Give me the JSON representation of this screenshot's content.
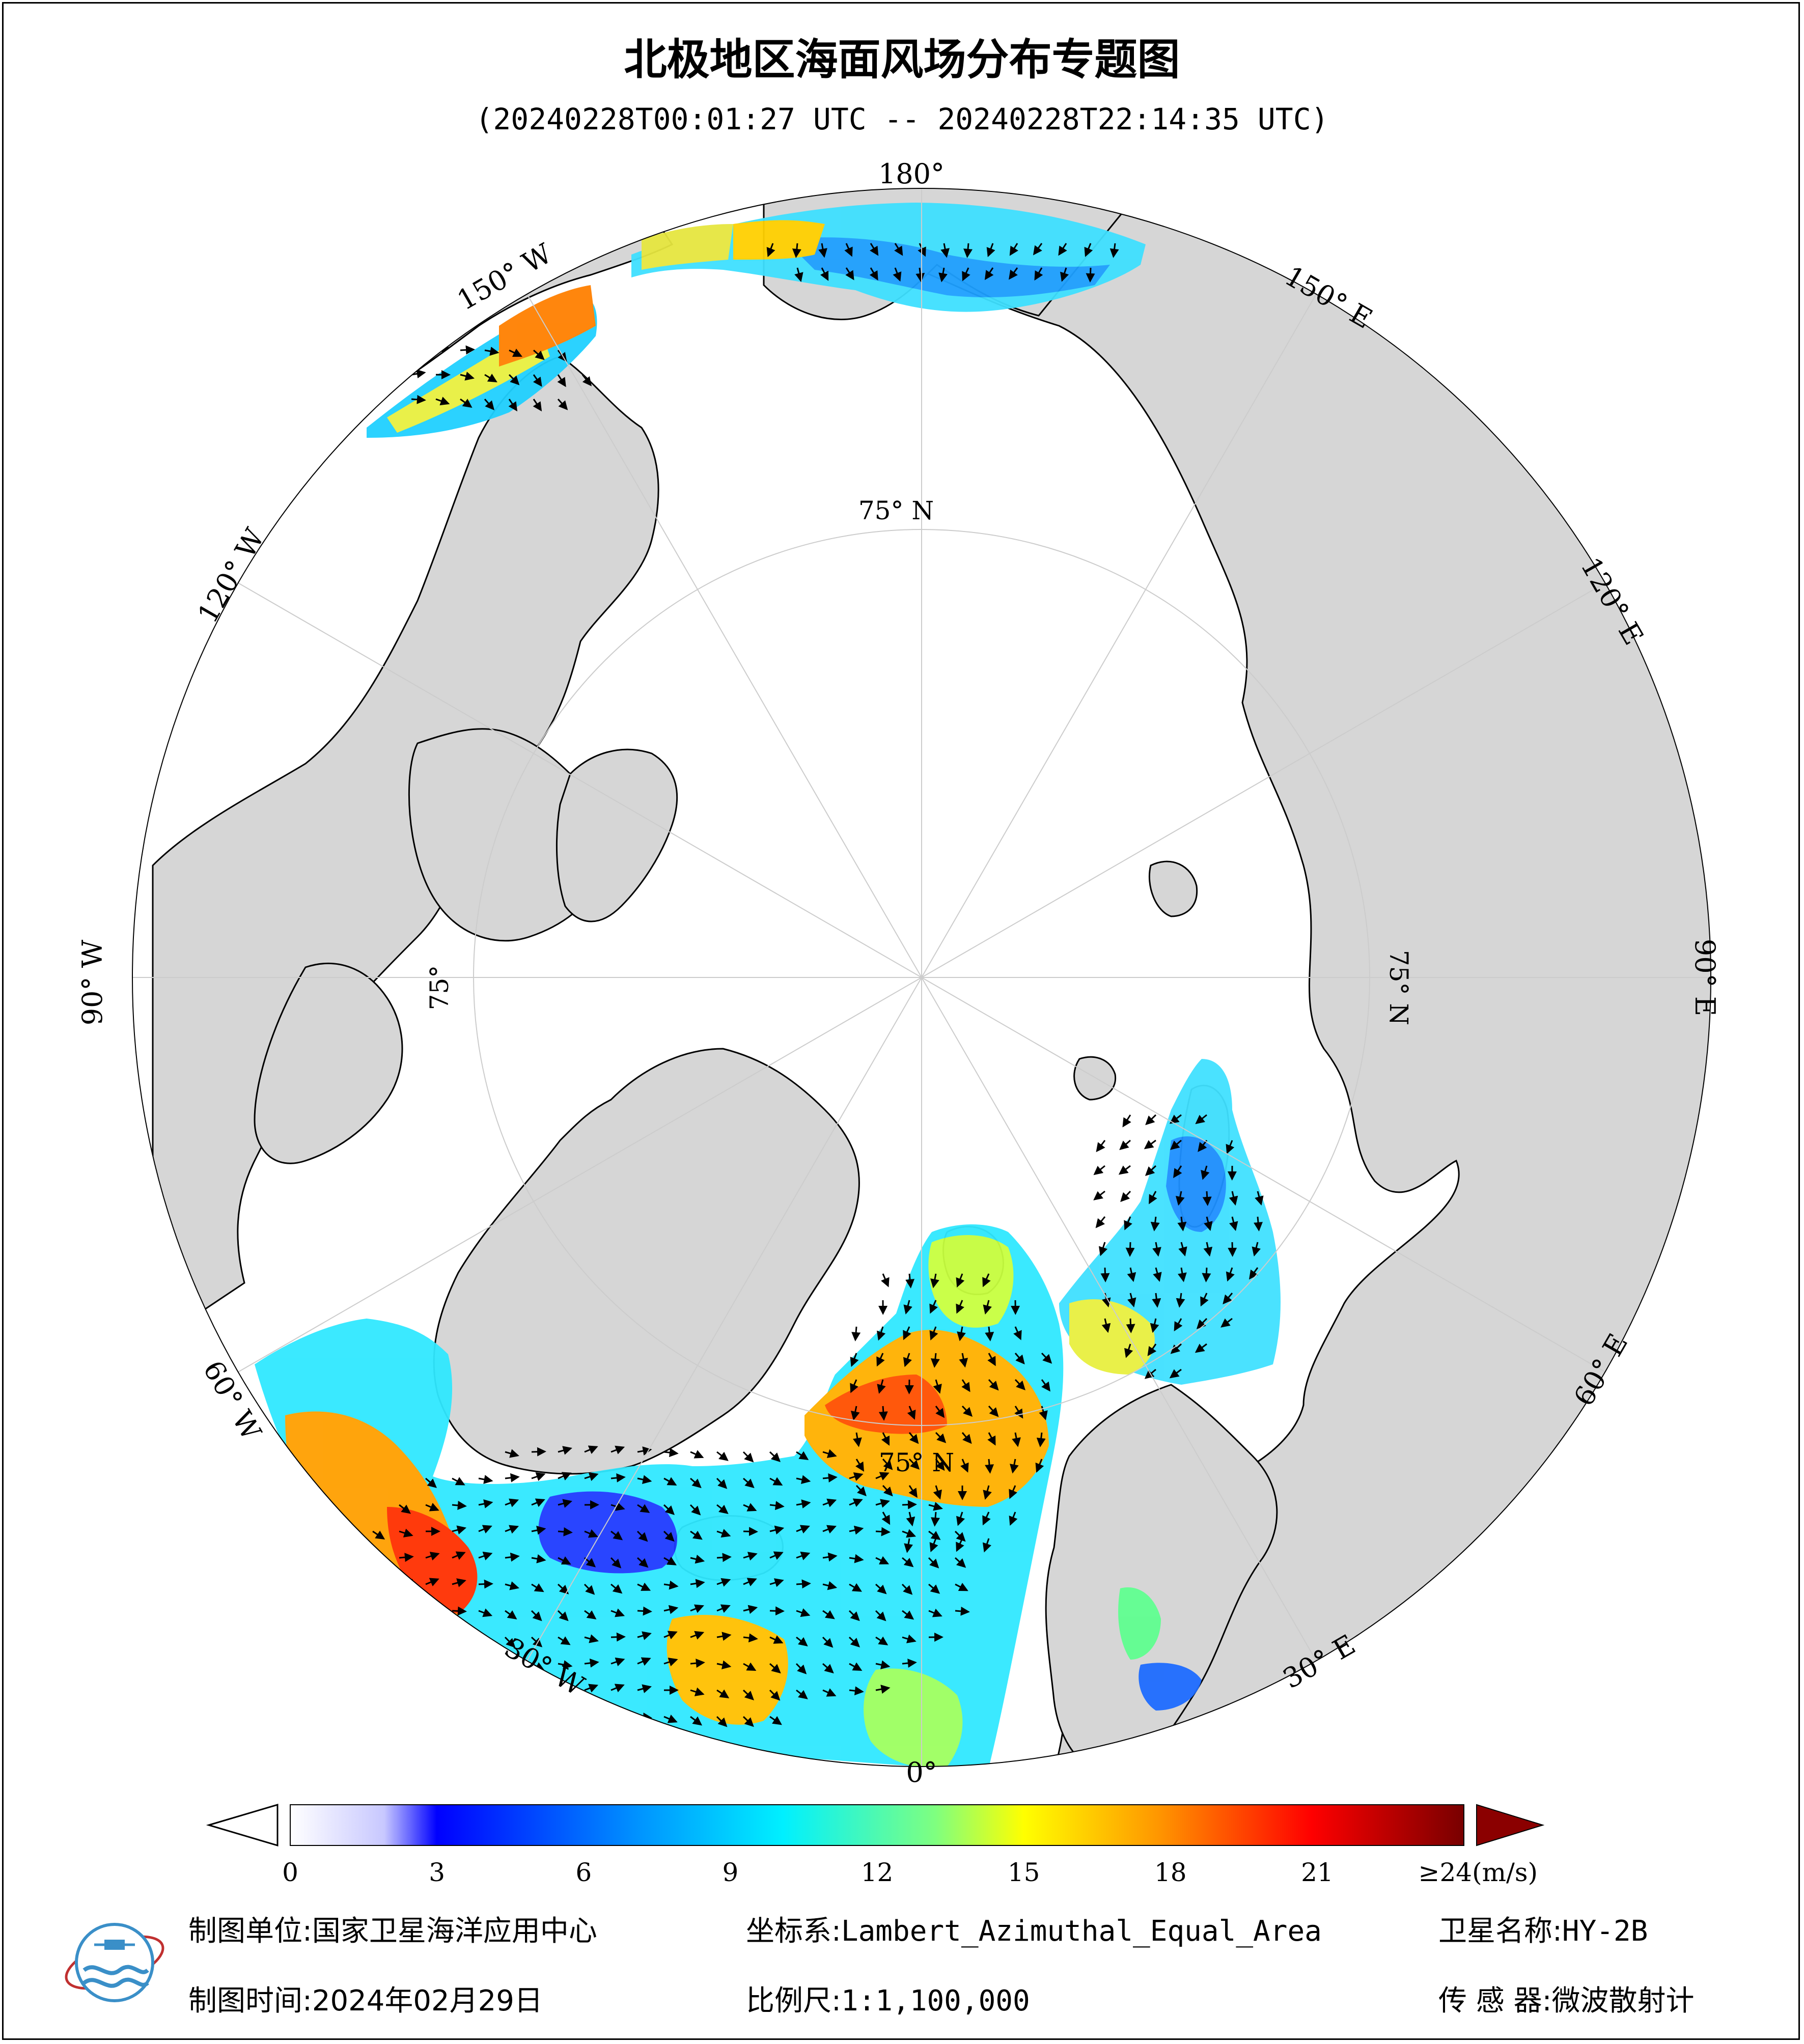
{
  "title": "北极地区海面风场分布专题图",
  "subtitle": "(20240228T00:01:27 UTC -- 20240228T22:14:35 UTC)",
  "map": {
    "projection": "Lambert_Azimuthal_Equal_Area",
    "longitude_labels": [
      {
        "text": "180°"
      },
      {
        "text": "150° W"
      },
      {
        "text": "120° W"
      },
      {
        "text": "90° W"
      },
      {
        "text": "60° W"
      },
      {
        "text": "30° W"
      },
      {
        "text": "0°"
      },
      {
        "text": "30° E"
      },
      {
        "text": "60° E"
      },
      {
        "text": "90° E"
      },
      {
        "text": "120° E"
      },
      {
        "text": "150° E"
      }
    ],
    "latitude_labels": [
      {
        "text": "75° N"
      },
      {
        "text": "75° N"
      },
      {
        "text": "75° N"
      },
      {
        "text": "75°"
      }
    ],
    "colors": {
      "land": "#d6d6d6",
      "ocean": "#ffffff",
      "outline": "#000000",
      "graticule": "#cccccc",
      "arrow": "#000000"
    }
  },
  "colorbar": {
    "unit_label": "≥24(m/s)",
    "tick_labels": [
      "0",
      "3",
      "6",
      "9",
      "12",
      "15",
      "18",
      "21"
    ],
    "tick_values": [
      0,
      3,
      6,
      9,
      12,
      15,
      18,
      21
    ],
    "range": [
      0,
      24
    ],
    "colors": [
      "#ffffff",
      "#c8c8ff",
      "#6464ff",
      "#0000ff",
      "#0096ff",
      "#00f0ff",
      "#7fff7f",
      "#ffff00",
      "#ff9600",
      "#ff0000",
      "#780000"
    ]
  },
  "footer": {
    "unit_label": "制图单位:",
    "unit_value": "国家卫星海洋应用中心",
    "crs_label": "坐标系:",
    "crs_value": "Lambert_Azimuthal_Equal_Area",
    "sat_label": "卫星名称:",
    "sat_value": "HY-2B",
    "date_label": "制图时间:",
    "date_value": "2024年02月29日",
    "scale_label": "比例尺:",
    "scale_value": "1:1,100,000",
    "sensor_label": "传 感 器:",
    "sensor_value": "微波散射计"
  }
}
